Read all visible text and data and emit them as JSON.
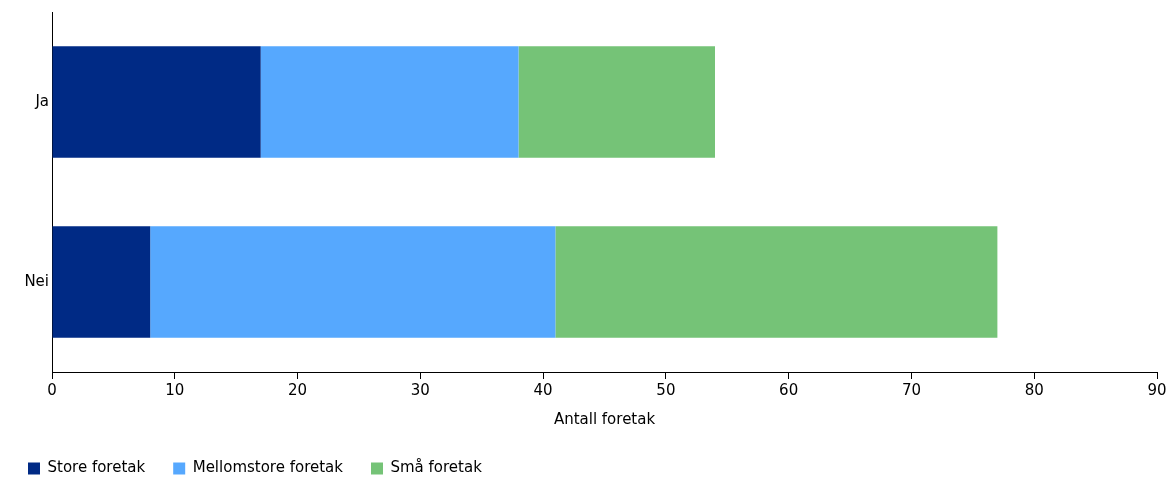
{
  "chart_data": {
    "type": "bar",
    "orientation": "horizontal",
    "stacked": true,
    "xlabel": "Antall foretak",
    "categories": [
      "Ja",
      "Nei"
    ],
    "series": [
      {
        "name": "Store foretak",
        "color": "#002a85",
        "values": [
          17,
          8
        ]
      },
      {
        "name": "Mellomstore foretak",
        "color": "#56a8fe",
        "values": [
          21,
          33
        ]
      },
      {
        "name": "Små foretak",
        "color": "#75c377",
        "values": [
          16,
          36
        ]
      }
    ],
    "xlim": [
      0,
      90
    ],
    "xticks": [
      0,
      10,
      20,
      30,
      40,
      50,
      60,
      70,
      80,
      90
    ],
    "legend": "bottom left"
  }
}
